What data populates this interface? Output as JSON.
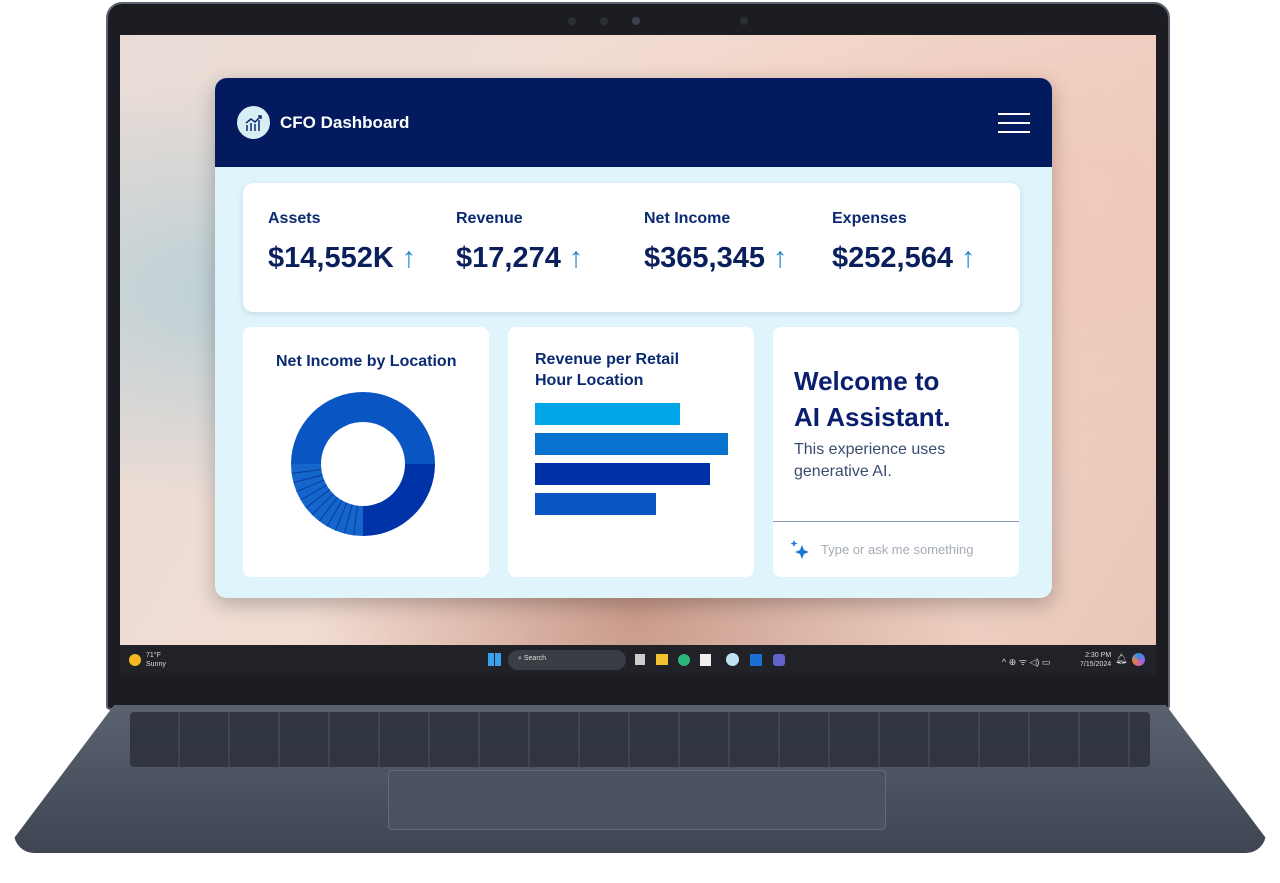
{
  "app": {
    "title": "CFO Dashboard",
    "logo_icon": "chart-growth-icon",
    "menu_icon": "hamburger-menu-icon",
    "header_color": "#031a5e"
  },
  "kpis": [
    {
      "label": "Assets",
      "value": "$14,552K",
      "trend": "↑"
    },
    {
      "label": "Revenue",
      "value": "$17,274",
      "trend": "↑"
    },
    {
      "label": "Net Income",
      "value": "$365,345",
      "trend": "↑"
    },
    {
      "label": "Expenses",
      "value": "$252,564",
      "trend": "↑"
    }
  ],
  "cards": {
    "net_income_title": "Net Income by Location",
    "revenue_title_1": "Revenue per Retail",
    "revenue_title_2": "Hour Location"
  },
  "assistant": {
    "title_1": "Welcome to",
    "title_2": "AI Assistant.",
    "subtitle": "This experience uses generative AI.",
    "placeholder": "Type or ask me something",
    "icon": "sparkle-icon"
  },
  "taskbar": {
    "weather_temp": "71°F",
    "weather_desc": "Sunny",
    "search": "Search",
    "time": "2:30 PM",
    "date": "7/15/2024"
  },
  "chart_data": [
    {
      "type": "pie",
      "donut": true,
      "title": "Net Income by Location",
      "values": [
        50,
        25,
        25
      ],
      "colors": [
        "#0a55c4",
        "#0033a8",
        "#1466cc"
      ]
    },
    {
      "type": "bar",
      "orientation": "horizontal",
      "title": "Revenue per Retail Hour Location",
      "values": [
        145,
        193,
        175,
        121
      ],
      "colors": [
        "#00a6e8",
        "#0872cf",
        "#0030a8",
        "#0a55c4"
      ]
    }
  ]
}
